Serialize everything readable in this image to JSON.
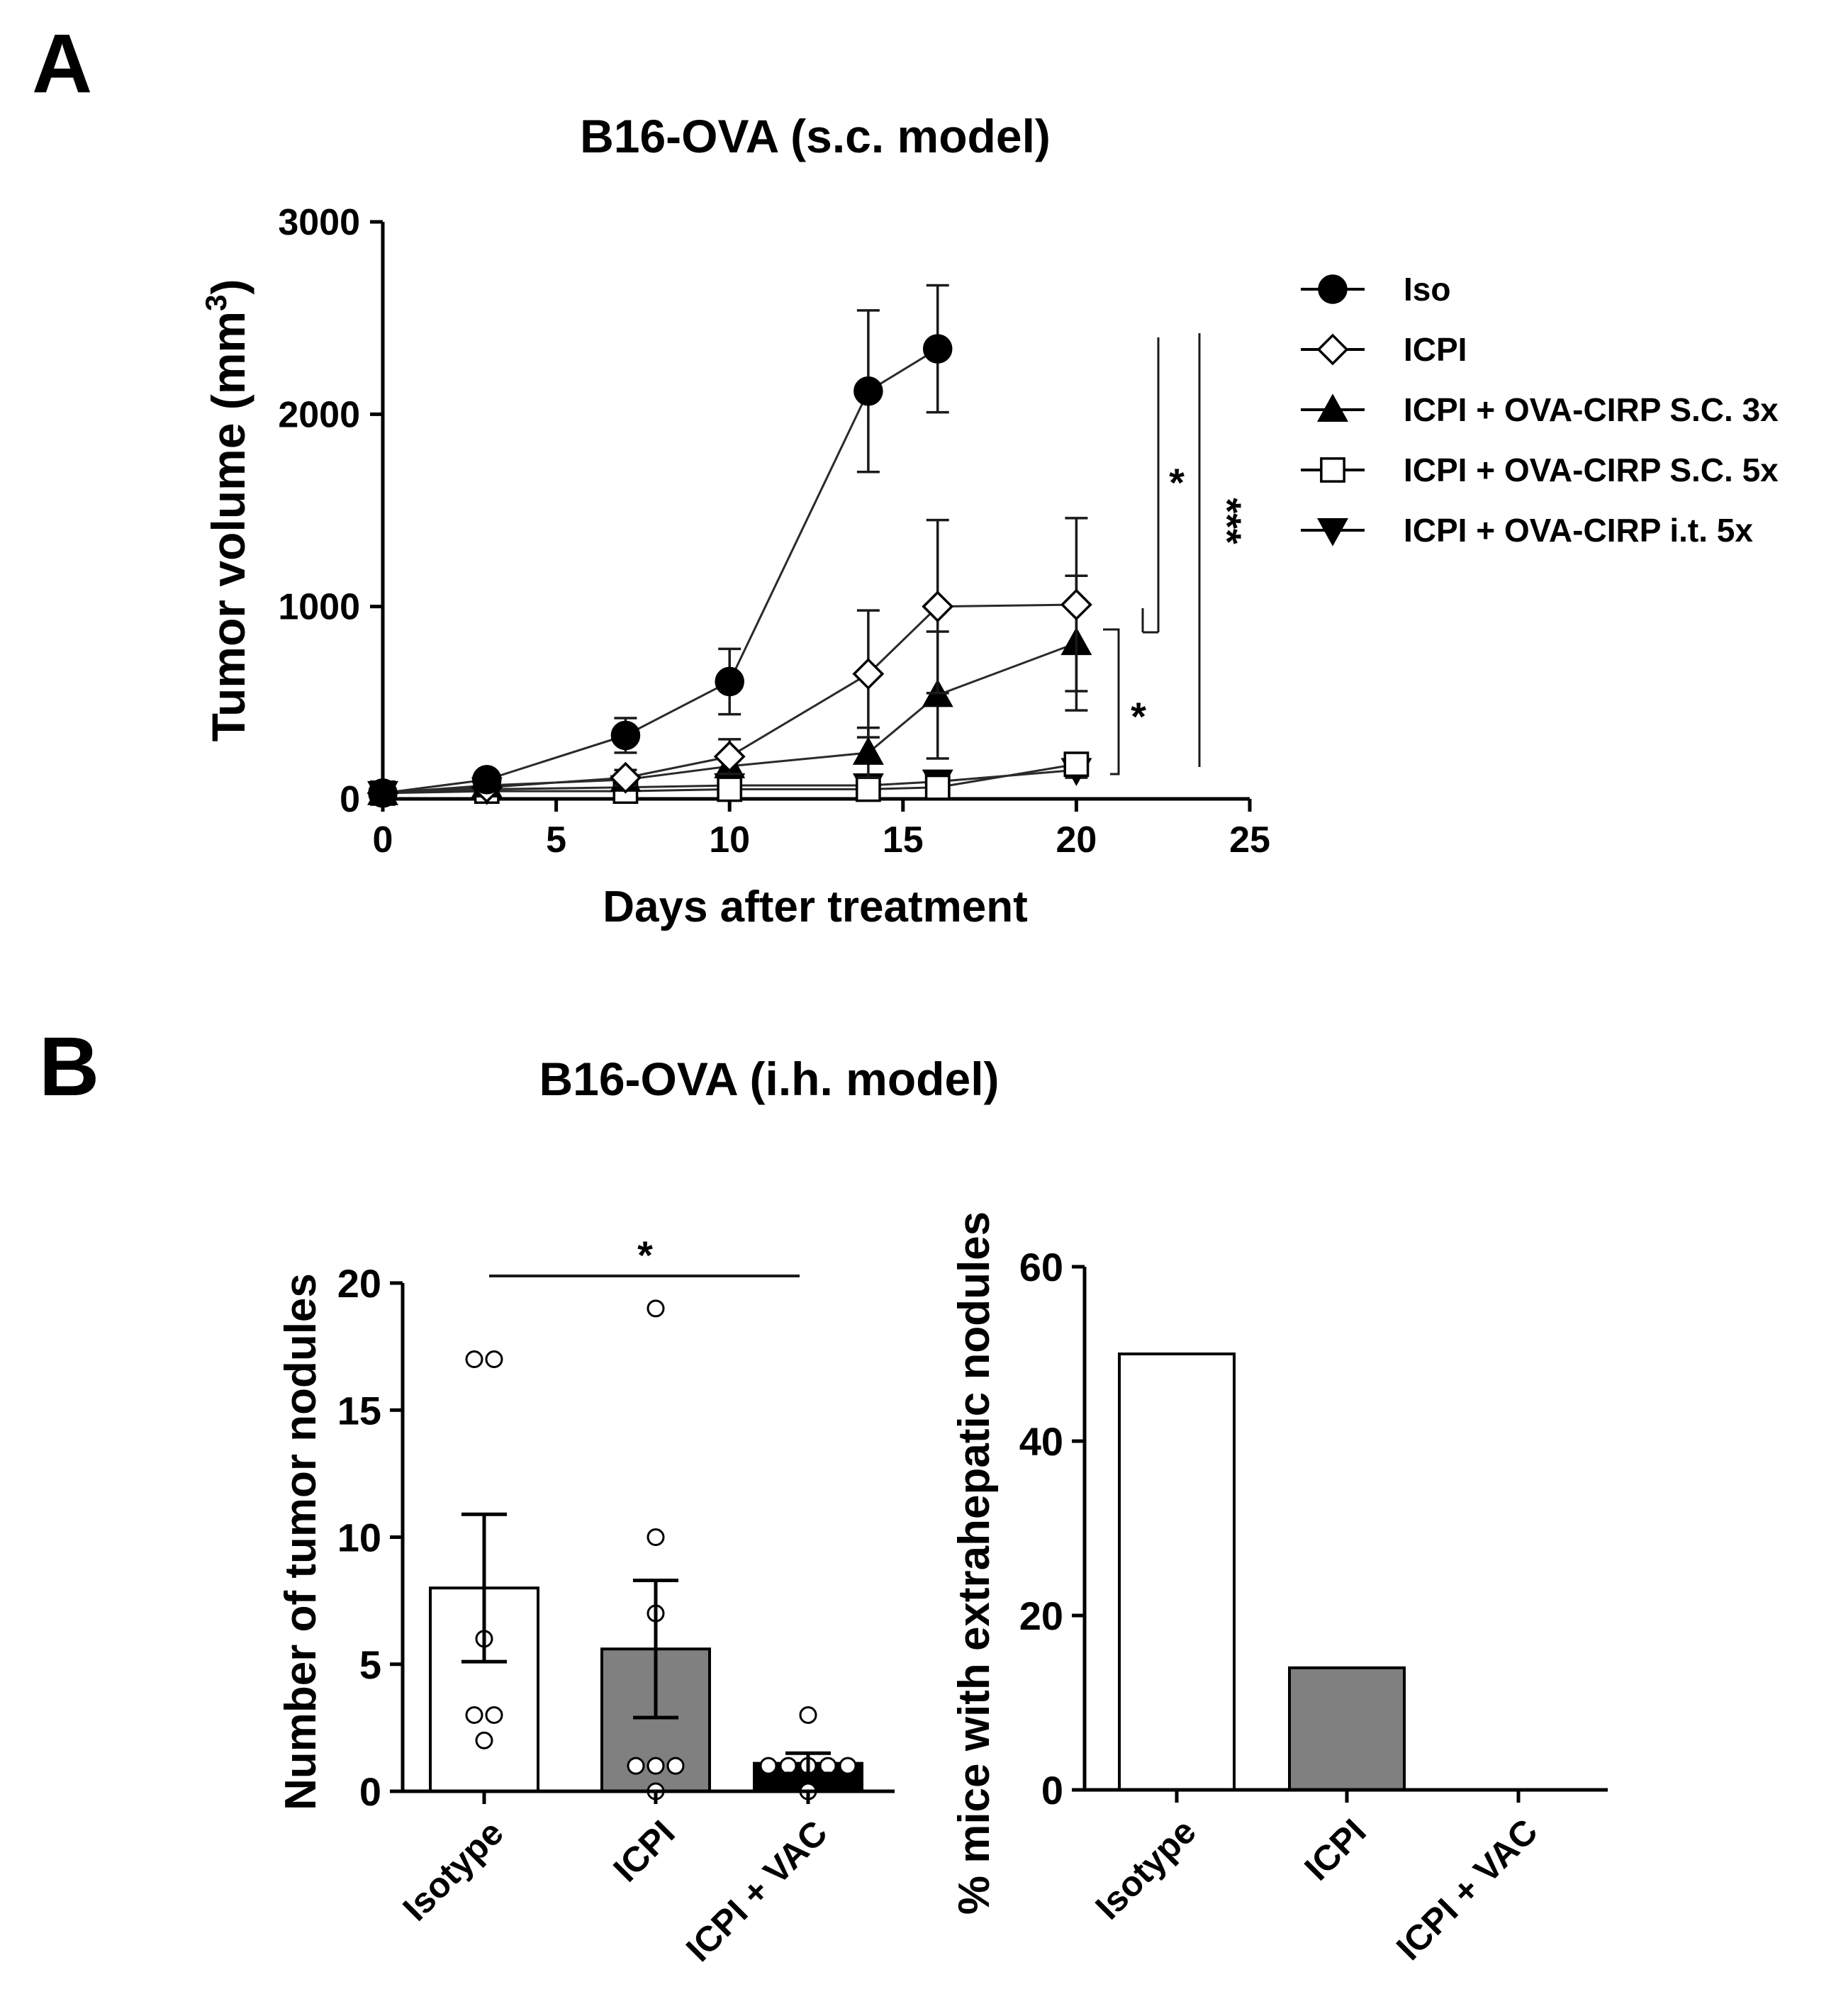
{
  "figure": {
    "panel_a_letter": "A",
    "panel_b_letter": "B",
    "panel_b_title": "B16-OVA (i.h. model)"
  },
  "chart_data": [
    {
      "id": "A",
      "type": "line",
      "title": "B16-OVA (s.c. model)",
      "xlabel": "Days after treatment",
      "ylabel": "Tumor volume (mm",
      "ylabel_sup": "3",
      "ylabel_close": ")",
      "xlim": [
        0,
        25
      ],
      "ylim": [
        0,
        3000
      ],
      "xticks": [
        0,
        5,
        10,
        15,
        20,
        25
      ],
      "xtick_labels": [
        "0",
        "5",
        "10",
        "15",
        "20",
        "25"
      ],
      "yticks": [
        0,
        1000,
        2000,
        3000
      ],
      "ytick_labels": [
        "0",
        "1000",
        "2000",
        "3000"
      ],
      "legend_position": "right",
      "series": [
        {
          "name": "Iso",
          "marker": "circle-filled",
          "x": [
            0,
            3,
            7,
            10,
            14,
            16
          ],
          "y": [
            30,
            100,
            330,
            610,
            2120,
            2340
          ],
          "err": [
            10,
            30,
            90,
            170,
            420,
            330
          ]
        },
        {
          "name": "ICPI",
          "marker": "diamond-open",
          "x": [
            0,
            3,
            7,
            10,
            14,
            16,
            20
          ],
          "y": [
            30,
            60,
            110,
            220,
            650,
            1000,
            1010
          ],
          "err": [
            10,
            20,
            40,
            90,
            330,
            450,
            450
          ]
        },
        {
          "name": "ICPI + OVA-CIRP S.C. 3x",
          "marker": "triangle-up-filled",
          "x": [
            0,
            3,
            7,
            10,
            14,
            16,
            20
          ],
          "y": [
            30,
            70,
            100,
            170,
            240,
            540,
            810
          ],
          "err": [
            10,
            20,
            30,
            60,
            130,
            330,
            350
          ]
        },
        {
          "name": "ICPI + OVA-CIRP S.C. 5x",
          "marker": "square-open",
          "x": [
            0,
            3,
            7,
            10,
            14,
            16,
            20
          ],
          "y": [
            30,
            40,
            40,
            50,
            50,
            60,
            180
          ],
          "err": [
            10,
            10,
            10,
            10,
            10,
            15,
            50
          ]
        },
        {
          "name": "ICPI + OVA-CIRP i.t. 5x",
          "marker": "triangle-down-filled",
          "x": [
            0,
            3,
            7,
            10,
            14,
            16,
            20
          ],
          "y": [
            30,
            50,
            60,
            70,
            70,
            90,
            150
          ],
          "err": [
            10,
            15,
            15,
            20,
            20,
            25,
            40
          ]
        }
      ],
      "annotations": [
        {
          "label": "*",
          "compares": "ICPI vs ICPI + OVA-CIRP S.C. 3x / S.C. 5x / i.t. 5x"
        },
        {
          "label": "*",
          "compares": "Iso vs ICPI / ICPI + OVA-CIRP S.C. 3x"
        },
        {
          "label": "***",
          "compares": "Iso vs ICPI + OVA-CIRP i.t. 5x"
        }
      ]
    },
    {
      "id": "B1",
      "type": "bar",
      "title": "",
      "xlabel": "",
      "ylabel": "Number of tumor nodules",
      "categories": [
        "Isotype",
        "ICPI",
        "ICPI + VAC"
      ],
      "values": [
        8.0,
        5.6,
        1.1
      ],
      "sem": [
        2.9,
        2.7,
        0.4
      ],
      "bar_colors": [
        "#ffffff",
        "#808080",
        "#000000"
      ],
      "points": [
        [
          17,
          17,
          6,
          3,
          3,
          2
        ],
        [
          19,
          10,
          7,
          1,
          1,
          1,
          0
        ],
        [
          3,
          1,
          1,
          1,
          1,
          1,
          0
        ]
      ],
      "ylim": [
        0,
        20
      ],
      "yticks": [
        0,
        5,
        10,
        15,
        20
      ],
      "ytick_labels": [
        "0",
        "5",
        "10",
        "15",
        "20"
      ],
      "annotations": [
        {
          "label": "*",
          "compares": "Isotype vs ICPI + VAC"
        }
      ]
    },
    {
      "id": "B2",
      "type": "bar",
      "title": "",
      "xlabel": "",
      "ylabel": "% mice with extrahepatic nodules",
      "categories": [
        "Isotype",
        "ICPI",
        "ICPI + VAC"
      ],
      "values": [
        50,
        14,
        0
      ],
      "bar_colors": [
        "#ffffff",
        "#808080",
        "#000000"
      ],
      "ylim": [
        0,
        60
      ],
      "yticks": [
        0,
        20,
        40,
        60
      ],
      "ytick_labels": [
        "0",
        "20",
        "40",
        "60"
      ]
    }
  ]
}
